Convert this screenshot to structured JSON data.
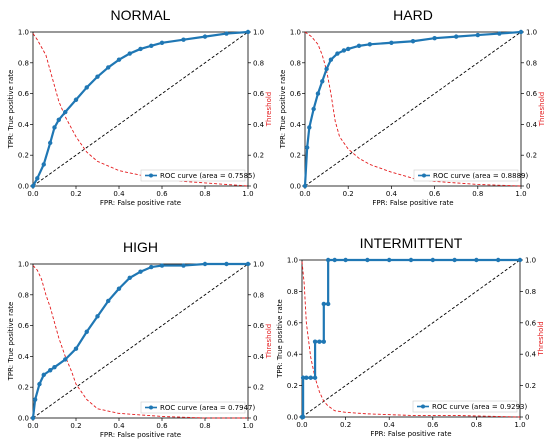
{
  "chart_data": [
    {
      "type": "line",
      "title": "NORMAL",
      "xlabel": "FPR: False positive rate",
      "ylabel": "TPR: True positive rate",
      "y2label": "Threshold",
      "xlim": [
        0,
        1
      ],
      "ylim": [
        0,
        1
      ],
      "y2lim": [
        0,
        1
      ],
      "xticks": [
        "0.0",
        "0.2",
        "0.4",
        "0.6",
        "0.8",
        "1.0"
      ],
      "yticks": [
        "0.0",
        "0.2",
        "0.4",
        "0.6",
        "0.8",
        "1.0"
      ],
      "y2ticks": [
        "0",
        "0.2",
        "0.4",
        "0.6",
        "0.8",
        "1.0"
      ],
      "legend": "ROC curve (area = 0.7585)",
      "legend_position": "lower-right",
      "series": [
        {
          "name": "ROC curve (area = 0.7585)",
          "color": "#1f77b4",
          "x": [
            0,
            0.02,
            0.05,
            0.08,
            0.1,
            0.12,
            0.15,
            0.2,
            0.25,
            0.3,
            0.35,
            0.4,
            0.45,
            0.5,
            0.55,
            0.6,
            0.7,
            0.8,
            0.9,
            1.0
          ],
          "y": [
            0,
            0.05,
            0.14,
            0.28,
            0.38,
            0.43,
            0.48,
            0.56,
            0.64,
            0.71,
            0.77,
            0.82,
            0.86,
            0.89,
            0.91,
            0.93,
            0.95,
            0.97,
            0.99,
            1.0
          ]
        },
        {
          "color": "#e41a1c",
          "x": [
            0,
            0.02,
            0.04,
            0.06,
            0.08,
            0.1,
            0.12,
            0.15,
            0.2,
            0.25,
            0.3,
            0.4,
            0.5,
            0.6,
            0.7,
            0.8,
            1.0
          ],
          "y": [
            0.99,
            0.95,
            0.9,
            0.85,
            0.75,
            0.65,
            0.55,
            0.45,
            0.32,
            0.22,
            0.16,
            0.1,
            0.07,
            0.05,
            0.03,
            0.02,
            0.0
          ]
        },
        {
          "color": "#000000",
          "x": [
            0,
            1
          ],
          "y": [
            0,
            1
          ]
        }
      ]
    },
    {
      "type": "line",
      "title": "HARD",
      "xlabel": "FPR: False positive rate",
      "ylabel": "TPR: True positive rate",
      "y2label": "Threshold",
      "xlim": [
        0,
        1
      ],
      "ylim": [
        0,
        1
      ],
      "y2lim": [
        0,
        1
      ],
      "xticks": [
        "0.0",
        "0.2",
        "0.4",
        "0.6",
        "0.8",
        "1.0"
      ],
      "yticks": [
        "0.0",
        "0.2",
        "0.4",
        "0.6",
        "0.8",
        "1.0"
      ],
      "y2ticks": [
        "0",
        "0.2",
        "0.4",
        "0.6",
        "0.8",
        "1.0"
      ],
      "legend": "ROC curve (area = 0.8889)",
      "legend_position": "lower-right",
      "series": [
        {
          "name": "ROC curve (area = 0.8889)",
          "color": "#1f77b4",
          "x": [
            0,
            0.01,
            0.02,
            0.04,
            0.06,
            0.08,
            0.1,
            0.12,
            0.15,
            0.18,
            0.2,
            0.25,
            0.3,
            0.4,
            0.5,
            0.6,
            0.7,
            0.8,
            0.9,
            1.0
          ],
          "y": [
            0,
            0.25,
            0.38,
            0.5,
            0.6,
            0.68,
            0.76,
            0.82,
            0.86,
            0.88,
            0.89,
            0.91,
            0.92,
            0.93,
            0.94,
            0.96,
            0.97,
            0.98,
            0.99,
            1.0
          ]
        },
        {
          "color": "#e41a1c",
          "x": [
            0,
            0.03,
            0.06,
            0.08,
            0.1,
            0.12,
            0.14,
            0.16,
            0.2,
            0.25,
            0.3,
            0.4,
            0.5,
            0.6,
            0.8,
            1.0
          ],
          "y": [
            1.0,
            0.97,
            0.92,
            0.85,
            0.75,
            0.6,
            0.42,
            0.32,
            0.24,
            0.18,
            0.14,
            0.09,
            0.05,
            0.03,
            0.01,
            0.0
          ]
        },
        {
          "color": "#000000",
          "x": [
            0,
            1
          ],
          "y": [
            0,
            1
          ]
        }
      ]
    },
    {
      "type": "line",
      "title": "HIGH",
      "xlabel": "FPR: False positive rate",
      "ylabel": "TPR: True positive rate",
      "y2label": "Threshold",
      "xlim": [
        0,
        1
      ],
      "ylim": [
        0,
        1
      ],
      "y2lim": [
        0,
        1
      ],
      "xticks": [
        "0.0",
        "0.2",
        "0.4",
        "0.6",
        "0.8",
        "1.0"
      ],
      "yticks": [
        "0.0",
        "0.2",
        "0.4",
        "0.6",
        "0.8",
        "1.0"
      ],
      "y2ticks": [
        "0",
        "0.2",
        "0.4",
        "0.6",
        "0.8",
        "1.0"
      ],
      "legend": "ROC curve (area = 0.7947)",
      "legend_position": "lower-right",
      "series": [
        {
          "name": "ROC curve (area = 0.7947)",
          "color": "#1f77b4",
          "x": [
            0,
            0.01,
            0.03,
            0.05,
            0.08,
            0.1,
            0.15,
            0.2,
            0.25,
            0.3,
            0.35,
            0.4,
            0.45,
            0.5,
            0.55,
            0.6,
            0.7,
            0.8,
            0.9,
            1.0
          ],
          "y": [
            0,
            0.12,
            0.22,
            0.28,
            0.31,
            0.33,
            0.38,
            0.45,
            0.56,
            0.66,
            0.76,
            0.84,
            0.91,
            0.95,
            0.98,
            0.99,
            0.99,
            1.0,
            1.0,
            1.0
          ]
        },
        {
          "color": "#e41a1c",
          "x": [
            0,
            0.02,
            0.04,
            0.06,
            0.08,
            0.1,
            0.12,
            0.15,
            0.18,
            0.2,
            0.25,
            0.3,
            0.4,
            0.5,
            0.6,
            0.8,
            1.0
          ],
          "y": [
            0.99,
            0.96,
            0.9,
            0.8,
            0.72,
            0.62,
            0.52,
            0.4,
            0.3,
            0.22,
            0.12,
            0.06,
            0.03,
            0.02,
            0.01,
            0.0,
            0.0
          ]
        },
        {
          "color": "#000000",
          "x": [
            0,
            1
          ],
          "y": [
            0,
            1
          ]
        }
      ]
    },
    {
      "type": "line",
      "title": "INTERMITTENT",
      "xlabel": "FPR: False positive rate",
      "ylabel": "TPR: True positive rate",
      "y2label": "Threshold",
      "xlim": [
        0,
        1
      ],
      "ylim": [
        0,
        1
      ],
      "y2lim": [
        0,
        1
      ],
      "xticks": [
        "0.0",
        "0.2",
        "0.4",
        "0.6",
        "0.8",
        "1.0"
      ],
      "yticks": [
        "0.0",
        "0.2",
        "0.4",
        "0.6",
        "0.8",
        "1.0"
      ],
      "y2ticks": [
        "0",
        "0.2",
        "0.4",
        "0.6",
        "0.8",
        "1.0"
      ],
      "legend": "ROC curve (area = 0.9293)",
      "legend_position": "lower-right",
      "series": [
        {
          "name": "ROC curve (area = 0.9293)",
          "color": "#1f77b4",
          "x": [
            0,
            0.005,
            0.005,
            0.02,
            0.04,
            0.06,
            0.06,
            0.08,
            0.1,
            0.1,
            0.12,
            0.12,
            0.15,
            0.2,
            0.3,
            0.4,
            0.5,
            0.6,
            0.7,
            0.8,
            0.9,
            1.0
          ],
          "y": [
            0,
            0,
            0.25,
            0.25,
            0.25,
            0.25,
            0.48,
            0.48,
            0.48,
            0.72,
            0.72,
            1.0,
            1.0,
            1.0,
            1.0,
            1.0,
            1.0,
            1.0,
            1.0,
            1.0,
            1.0,
            1.0
          ]
        },
        {
          "color": "#e41a1c",
          "x": [
            0,
            0.01,
            0.02,
            0.04,
            0.06,
            0.08,
            0.1,
            0.12,
            0.15,
            0.2,
            0.3,
            0.5,
            0.7,
            1.0
          ],
          "y": [
            0.99,
            0.85,
            0.6,
            0.38,
            0.25,
            0.16,
            0.1,
            0.07,
            0.04,
            0.03,
            0.02,
            0.01,
            0.01,
            0.0
          ]
        },
        {
          "color": "#000000",
          "x": [
            0,
            1
          ],
          "y": [
            0,
            1
          ]
        }
      ]
    }
  ]
}
